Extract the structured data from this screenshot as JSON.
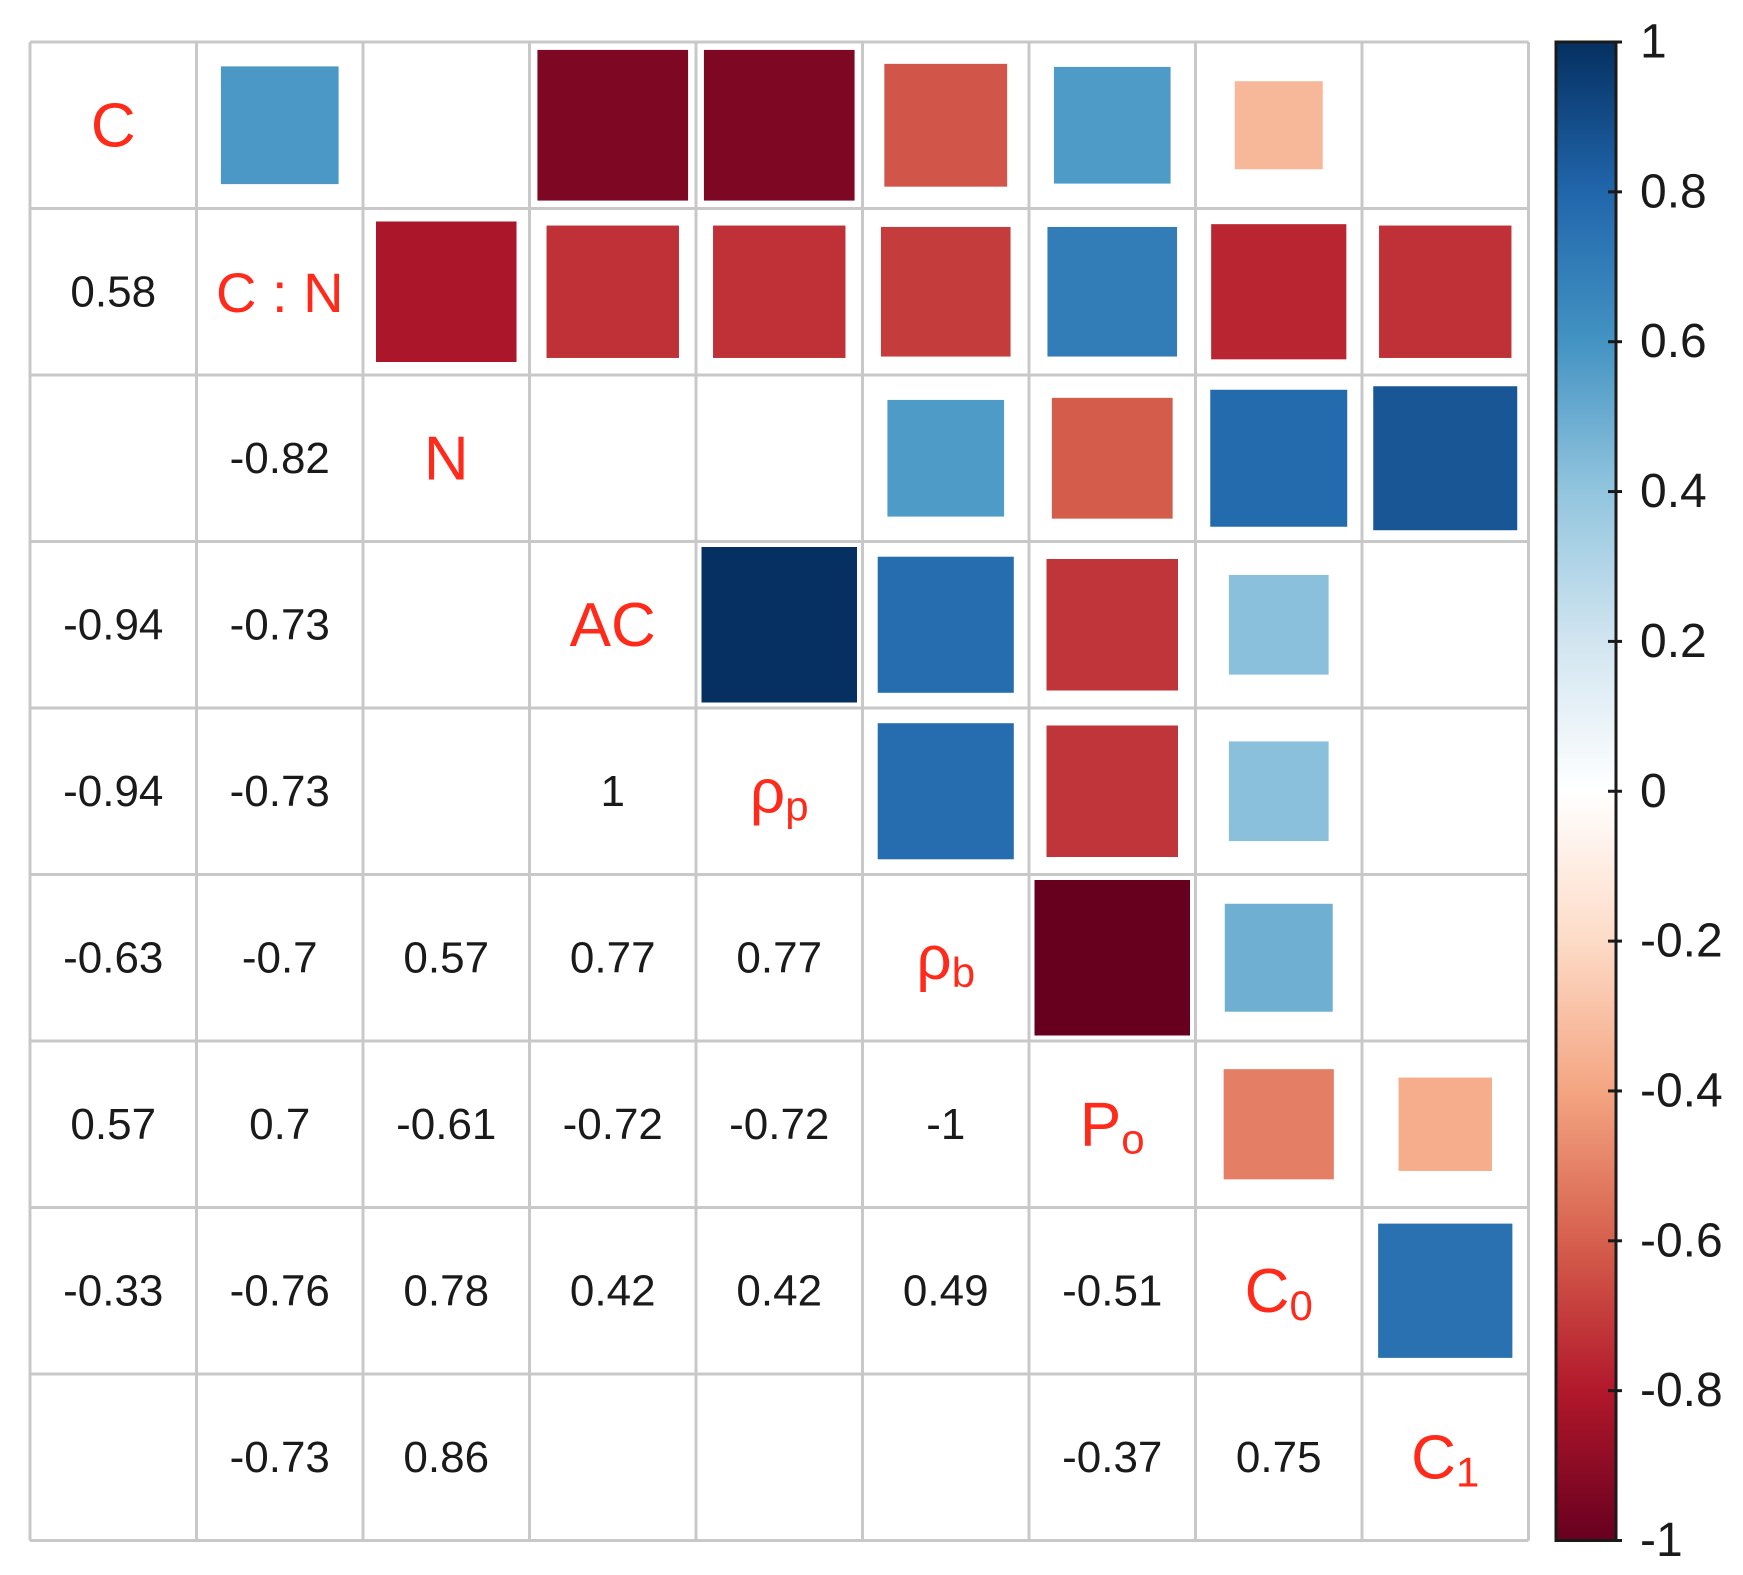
{
  "chart_data": {
    "type": "heatmap",
    "subtype": "correlation-matrix",
    "variables": [
      {
        "main": "C",
        "sub": ""
      },
      {
        "main": "C : N",
        "sub": ""
      },
      {
        "main": "N",
        "sub": ""
      },
      {
        "main": "AC",
        "sub": ""
      },
      {
        "main": "ρ",
        "sub": "p"
      },
      {
        "main": "ρ",
        "sub": "b"
      },
      {
        "main": "P",
        "sub": "o"
      },
      {
        "main": "C",
        "sub": "0"
      },
      {
        "main": "C",
        "sub": "1"
      }
    ],
    "matrix": [
      [
        1,
        0.58,
        null,
        -0.94,
        -0.94,
        -0.63,
        0.57,
        -0.33,
        null
      ],
      [
        0.58,
        1,
        -0.82,
        -0.73,
        -0.73,
        -0.7,
        0.7,
        -0.76,
        -0.73
      ],
      [
        null,
        -0.82,
        1,
        null,
        null,
        0.57,
        -0.61,
        0.78,
        0.86
      ],
      [
        -0.94,
        -0.73,
        null,
        1,
        1,
        0.77,
        -0.72,
        0.42,
        null
      ],
      [
        -0.94,
        -0.73,
        null,
        1,
        1,
        0.77,
        -0.72,
        0.42,
        null
      ],
      [
        -0.63,
        -0.7,
        0.57,
        0.77,
        0.77,
        1,
        -1,
        0.49,
        null
      ],
      [
        0.57,
        0.7,
        -0.61,
        -0.72,
        -0.72,
        -1,
        1,
        -0.51,
        -0.37
      ],
      [
        -0.33,
        -0.76,
        0.78,
        0.42,
        0.42,
        0.49,
        -0.51,
        1,
        0.75
      ],
      [
        null,
        -0.73,
        0.86,
        null,
        null,
        null,
        -0.37,
        0.75,
        1
      ]
    ],
    "upper_method": "square",
    "lower_method": "number",
    "colorbar": {
      "range": [
        -1,
        1
      ],
      "ticks": [
        "1",
        "0.8",
        "0.6",
        "0.4",
        "0.2",
        "0",
        "-0.2",
        "-0.4",
        "-0.6",
        "-0.8",
        "-1"
      ],
      "tick_values": [
        1,
        0.8,
        0.6,
        0.4,
        0.2,
        0,
        -0.2,
        -0.4,
        -0.6,
        -0.8,
        -1
      ],
      "placement": "right"
    },
    "colors": {
      "negative_end": "#67001f",
      "positive_end": "#053061",
      "label_color": "#ff2a1a",
      "grid_color": "#c8c8c8"
    }
  }
}
